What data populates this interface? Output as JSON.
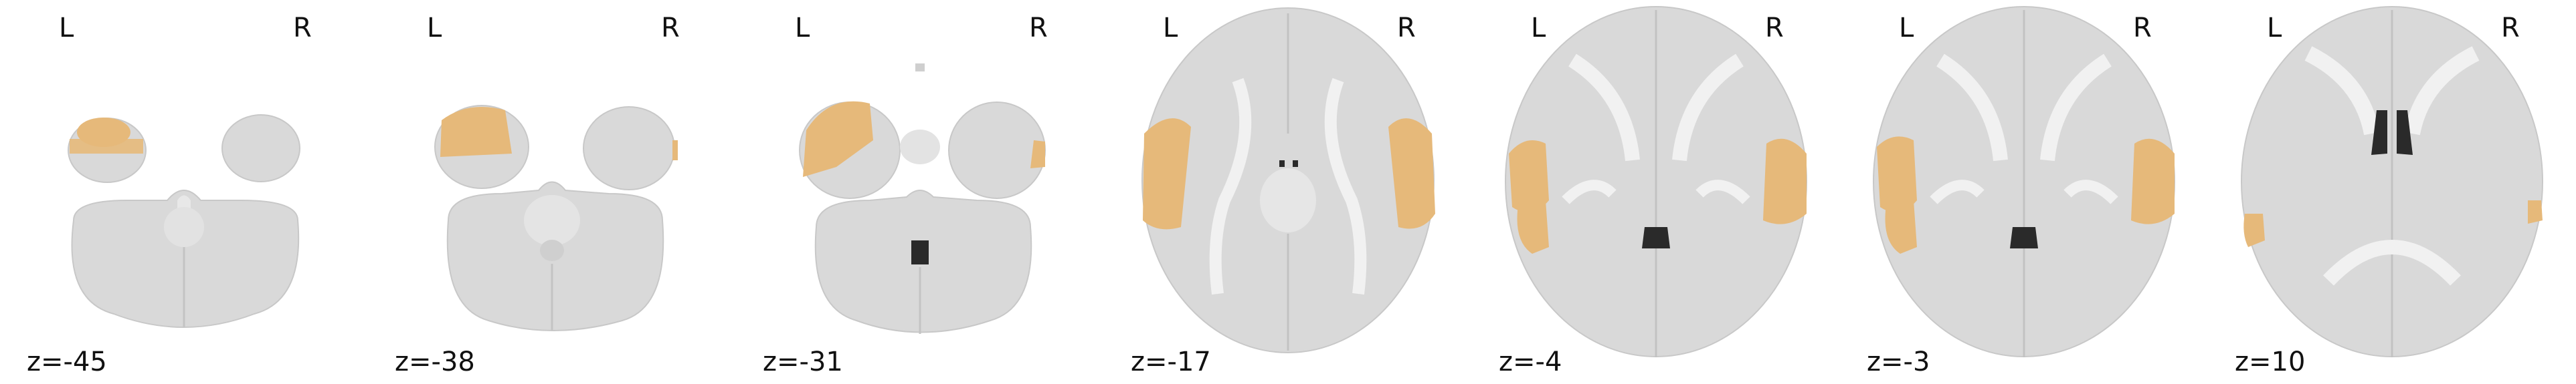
{
  "figure": {
    "background": "#ffffff",
    "brain_color": "#d9d9d9",
    "brain_edge_color": "#c8c8c8",
    "white_matter_color": "#f1f1f1",
    "ventricle_color": "#2a2a2a",
    "overlay_color": "#e6b97a",
    "orientation_left": "L",
    "orientation_right": "R",
    "slices": [
      {
        "label": "z=-45",
        "view": "axial",
        "overlay": "left-cerebellar-temporal"
      },
      {
        "label": "z=-38",
        "view": "axial",
        "overlay": "left-temporal-pole"
      },
      {
        "label": "z=-31",
        "view": "axial",
        "overlay": "bilateral-temporal-pole"
      },
      {
        "label": "z=-17",
        "view": "axial",
        "overlay": "bilateral-lateral-temporal"
      },
      {
        "label": "z=-4",
        "view": "axial",
        "overlay": "bilateral-superior-temporal"
      },
      {
        "label": "z=-3",
        "view": "axial",
        "overlay": "bilateral-superior-temporal"
      },
      {
        "label": "z=10",
        "view": "axial",
        "overlay": "bilateral-edge-temporal"
      }
    ]
  }
}
